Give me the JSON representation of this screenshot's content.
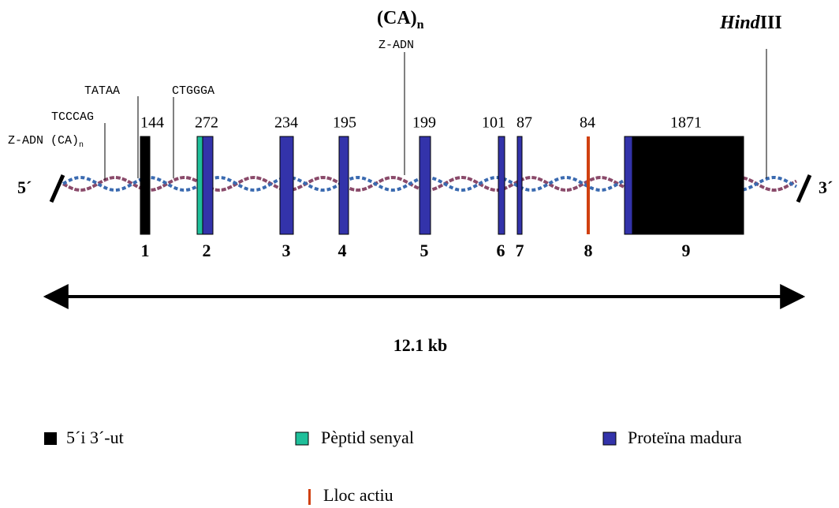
{
  "ends": {
    "five": "5´",
    "three": "3´"
  },
  "annotations": {
    "z_adn_ca": {
      "text": "Z-ADN (CA)",
      "sub": "n"
    },
    "tcccag": "TCCCAG",
    "tataa": "TATAA",
    "ctggga": "CTGGGA",
    "ca_repeat": {
      "text": "(CA)",
      "sub": "n"
    },
    "z_adn": "Z-ADN",
    "hindiii": {
      "italic": "Hind",
      "text": "III"
    }
  },
  "exons": [
    {
      "number": "1",
      "size": "144"
    },
    {
      "number": "2",
      "size": "272"
    },
    {
      "number": "3",
      "size": "234"
    },
    {
      "number": "4",
      "size": "195"
    },
    {
      "number": "5",
      "size": "199"
    },
    {
      "number": "6",
      "size": "101"
    },
    {
      "number": "7",
      "size": "87"
    },
    {
      "number": "8",
      "size": "84"
    },
    {
      "number": "9",
      "size": "1871"
    }
  ],
  "scale": "12.1 kb",
  "legend": [
    "5´i 3´-ut",
    "Pèptid senyal",
    "Proteïna madura",
    "Lloc actiu"
  ]
}
